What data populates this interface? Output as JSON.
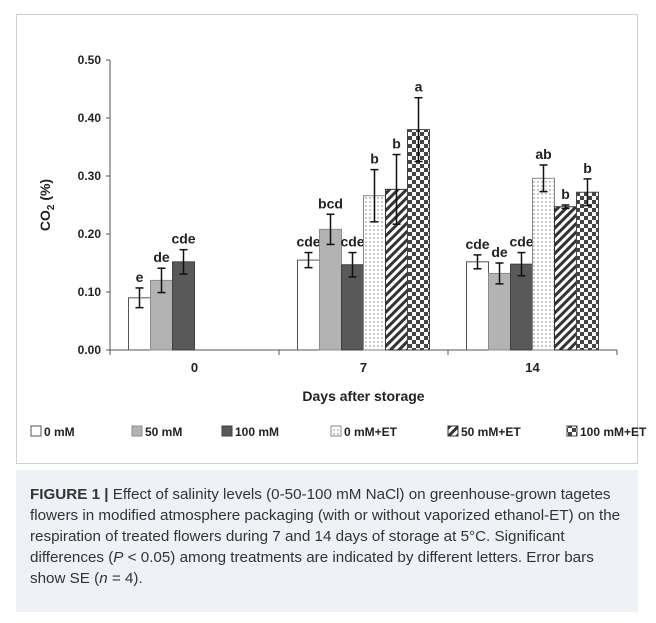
{
  "chart_data": {
    "type": "bar",
    "categories": [
      "0",
      "7",
      "14"
    ],
    "xlabel": "Days after storage",
    "ylabel": "CO2 (%)",
    "ylabel_main": "CO",
    "ylabel_sub": "2",
    "ylabel_unit": " (%)",
    "ylim": [
      0,
      0.5
    ],
    "yticks": [
      "0.00",
      "0.10",
      "0.20",
      "0.30",
      "0.40",
      "0.50"
    ],
    "legend_position": "bottom",
    "series": [
      {
        "name": "0 mM",
        "pattern": "white",
        "values": [
          0.09,
          0.155,
          0.152
        ],
        "errors": [
          0.017,
          0.013,
          0.012
        ],
        "letters": [
          "e",
          "cde",
          "cde"
        ]
      },
      {
        "name": "50 mM",
        "pattern": "light-gray",
        "values": [
          0.12,
          0.208,
          0.132
        ],
        "errors": [
          0.021,
          0.026,
          0.018
        ],
        "letters": [
          "de",
          "bcd",
          "de"
        ]
      },
      {
        "name": "100 mM",
        "pattern": "dark-gray",
        "values": [
          0.152,
          0.147,
          0.148
        ],
        "errors": [
          0.021,
          0.021,
          0.02
        ],
        "letters": [
          "cde",
          "cde",
          "cde"
        ]
      },
      {
        "name": "0 mM+ET",
        "pattern": "dots",
        "values": [
          null,
          0.266,
          0.296
        ],
        "errors": [
          null,
          0.045,
          0.023
        ],
        "letters": [
          null,
          "b",
          "ab"
        ]
      },
      {
        "name": "50 mM+ET",
        "pattern": "diagonal",
        "values": [
          null,
          0.277,
          0.247
        ],
        "errors": [
          null,
          0.06,
          0.003
        ],
        "letters": [
          null,
          "b",
          "b"
        ]
      },
      {
        "name": "100 mM+ET",
        "pattern": "checker",
        "values": [
          null,
          0.38,
          0.272
        ],
        "errors": [
          null,
          0.055,
          0.023
        ],
        "letters": [
          null,
          "a",
          "b"
        ]
      }
    ]
  },
  "caption": {
    "label": "FIGURE 1 |",
    "text_before_p": " Effect of salinity levels (0-50-100 mM NaCl) on greenhouse-grown tagetes flowers in modified atmosphere packaging (with or without vaporized ethanol-ET) on the respiration of treated flowers during 7 and 14 days of storage at 5°C. Significant differences (",
    "p_symbol": "P",
    "text_between": " < 0.05) among treatments are indicated by different letters. Error bars show SE (",
    "n_symbol": "n",
    "text_after": " = 4)."
  }
}
